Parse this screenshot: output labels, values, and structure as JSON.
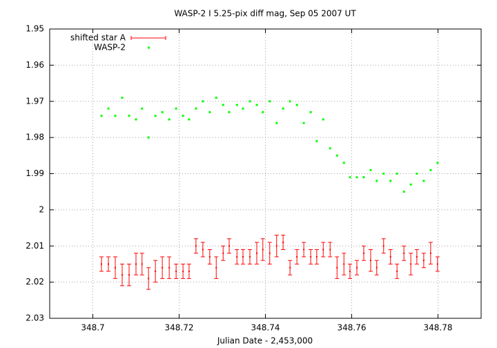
{
  "chart_data": {
    "type": "scatter_errorbar",
    "title": "WASP-2 I 5.25-pix diff mag, Sep 05 2007 UT",
    "xlabel": "Julian Date - 2,453,000",
    "xlim": [
      348.69,
      348.79
    ],
    "xticks": [
      348.7,
      348.72,
      348.74,
      348.76,
      348.78
    ],
    "ylim": [
      2.03,
      1.95
    ],
    "yticks": [
      1.95,
      1.96,
      1.97,
      1.98,
      1.99,
      2,
      2.01,
      2.02,
      2.03
    ],
    "grid": true,
    "legend": "top-left",
    "x": [
      348.702,
      348.7036,
      348.7052,
      348.7068,
      348.7084,
      348.71,
      348.7114,
      348.7129,
      348.7145,
      348.7161,
      348.7177,
      348.7193,
      348.7209,
      348.7223,
      348.7239,
      348.7255,
      348.7271,
      348.7286,
      348.7302,
      348.7316,
      348.7334,
      348.7348,
      348.7364,
      348.738,
      348.7394,
      348.741,
      348.7426,
      348.7441,
      348.7457,
      348.7473,
      348.7489,
      348.7505,
      348.7519,
      348.7534,
      348.755,
      348.7566,
      348.7582,
      348.7596,
      348.7612,
      348.7628,
      348.7644,
      348.7658,
      348.7674,
      348.769,
      348.7705,
      348.7721,
      348.7737,
      348.7751,
      348.7767,
      348.7783,
      348.7799
    ],
    "series": [
      {
        "name": "shifted star A",
        "color": "#ff0000",
        "values": [
          2.015,
          2.015,
          2.016,
          2.018,
          2.018,
          2.015,
          2.015,
          2.019,
          2.017,
          2.016,
          2.016,
          2.017,
          2.017,
          2.017,
          2.01,
          2.011,
          2.013,
          2.016,
          2.012,
          2.01,
          2.013,
          2.013,
          2.013,
          2.012,
          2.011,
          2.012,
          2.01,
          2.009,
          2.016,
          2.013,
          2.011,
          2.013,
          2.013,
          2.011,
          2.011,
          2.016,
          2.015,
          2.017,
          2.016,
          2.012,
          2.014,
          2.016,
          2.01,
          2.013,
          2.017,
          2.012,
          2.015,
          2.013,
          2.014,
          2.012,
          2.015
        ],
        "errors": [
          0.002,
          0.002,
          0.003,
          0.003,
          0.003,
          0.003,
          0.003,
          0.003,
          0.003,
          0.003,
          0.003,
          0.002,
          0.002,
          0.002,
          0.002,
          0.002,
          0.002,
          0.003,
          0.002,
          0.002,
          0.002,
          0.002,
          0.002,
          0.003,
          0.003,
          0.003,
          0.003,
          0.002,
          0.002,
          0.002,
          0.002,
          0.002,
          0.002,
          0.002,
          0.002,
          0.003,
          0.003,
          0.002,
          0.002,
          0.002,
          0.003,
          0.002,
          0.002,
          0.002,
          0.002,
          0.002,
          0.003,
          0.002,
          0.002,
          0.003,
          0.002
        ]
      },
      {
        "name": "WASP-2",
        "color": "#00ff00",
        "values": [
          1.974,
          1.972,
          1.974,
          1.969,
          1.974,
          1.975,
          1.972,
          1.98,
          1.974,
          1.973,
          1.975,
          1.972,
          1.974,
          1.975,
          1.972,
          1.97,
          1.973,
          1.969,
          1.971,
          1.973,
          1.971,
          1.972,
          1.97,
          1.971,
          1.973,
          1.97,
          1.976,
          1.972,
          1.97,
          1.971,
          1.976,
          1.973,
          1.981,
          1.975,
          1.983,
          1.985,
          1.987,
          1.991,
          1.991,
          1.991,
          1.989,
          1.992,
          1.99,
          1.992,
          1.99,
          1.995,
          1.993,
          1.99,
          1.992,
          1.989,
          1.987
        ]
      }
    ]
  }
}
